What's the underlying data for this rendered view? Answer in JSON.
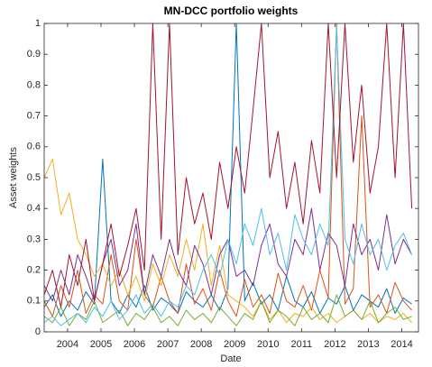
{
  "chart_data": {
    "type": "line",
    "title": "MN-DCC portfolio weights",
    "x_label": "Date",
    "y_label": "Asset weights",
    "x": [
      2003.3,
      2003.55,
      2003.8,
      2004.05,
      2004.3,
      2004.55,
      2004.8,
      2005.05,
      2005.3,
      2005.55,
      2005.8,
      2006.05,
      2006.3,
      2006.55,
      2006.8,
      2007.05,
      2007.3,
      2007.55,
      2007.8,
      2008.05,
      2008.3,
      2008.55,
      2008.8,
      2009.05,
      2009.3,
      2009.55,
      2009.8,
      2010.05,
      2010.3,
      2010.55,
      2010.8,
      2011.05,
      2011.3,
      2011.55,
      2011.8,
      2012.05,
      2012.3,
      2012.55,
      2012.8,
      2013.05,
      2013.3,
      2013.55,
      2013.8,
      2014.05,
      2014.3
    ],
    "series": [
      {
        "color": "#0072BD",
        "values": [
          0.08,
          0.12,
          0.05,
          0.1,
          0.07,
          0.13,
          0.09,
          0.56,
          0.1,
          0.06,
          0.12,
          0.08,
          0.15,
          0.07,
          0.11,
          0.09,
          0.06,
          0.13,
          0.1,
          0.08,
          0.12,
          0.07,
          0.14,
          1,
          0.1,
          0.16,
          0.09,
          0.12,
          0.07,
          0.18,
          0.1,
          0.08,
          0.13,
          0.06,
          0.11,
          0.09,
          0.15,
          0.07,
          0.12,
          0.1,
          0.08,
          0.14,
          0.06,
          0.11,
          0.09
        ]
      },
      {
        "color": "#D95319",
        "values": [
          0.1,
          0.05,
          0.15,
          0.08,
          0.2,
          0.06,
          0.12,
          0.09,
          0.25,
          0.1,
          0.07,
          0.3,
          0.12,
          0.08,
          0.18,
          0.1,
          0.06,
          0.22,
          0.09,
          0.14,
          0.07,
          0.2,
          0.1,
          0.05,
          0.17,
          0.08,
          0.12,
          0.06,
          0.19,
          0.1,
          0.08,
          0.15,
          0.07,
          0.2,
          0.11,
          1,
          0.09,
          0.14,
          0.7,
          0.08,
          0.12,
          0.06,
          0.16,
          0.1,
          0.07
        ]
      },
      {
        "color": "#EDB120",
        "values": [
          0.5,
          0.56,
          0.38,
          0.45,
          0.3,
          0.25,
          0.18,
          0.22,
          0.15,
          0.2,
          0.12,
          0.18,
          0.1,
          0.22,
          0.15,
          0.25,
          0.18,
          0.3,
          0.2,
          0.35,
          0.15,
          0.28,
          0.12,
          0.1,
          0.08,
          0.05,
          0.1,
          0.04,
          0.07,
          0.03,
          0.06,
          0.05,
          0.08,
          0.04,
          0.06,
          0.03,
          0.05,
          0.07,
          0.04,
          0.06,
          0.03,
          0.05,
          0.04,
          0.06,
          0.03
        ]
      },
      {
        "color": "#7E2F8E",
        "values": [
          0.15,
          0.1,
          0.2,
          0.12,
          0.25,
          0.18,
          0.1,
          0.22,
          0.3,
          0.15,
          0.2,
          0.35,
          0.12,
          0.25,
          0.18,
          0.3,
          0.2,
          0.15,
          0.28,
          0.22,
          0.12,
          0.25,
          0.3,
          0.18,
          0.2,
          0.15,
          0.28,
          0.35,
          0.22,
          0.18,
          0.3,
          0.25,
          0.4,
          0.2,
          0.32,
          0.28,
          0.15,
          0.35,
          0.25,
          0.3,
          0.2,
          0.38,
          0.22,
          0.3,
          0.25
        ]
      },
      {
        "color": "#77AC30",
        "values": [
          0.05,
          0.03,
          0.08,
          0.02,
          0.06,
          0.04,
          0.1,
          0.03,
          0.05,
          0.07,
          0.02,
          0.06,
          0.04,
          0.08,
          0.03,
          0.05,
          0.02,
          0.07,
          0.04,
          0.06,
          0.03,
          0.08,
          0.05,
          0.02,
          0.06,
          0.04,
          0.1,
          0.03,
          0.07,
          0.05,
          0.02,
          0.08,
          0.04,
          0.06,
          0.03,
          0.12,
          0.05,
          0.07,
          0.04,
          0.1,
          0.03,
          0.06,
          0.08,
          0.04,
          0.05
        ]
      },
      {
        "color": "#4DBEEE",
        "values": [
          0.03,
          0.05,
          0.02,
          0.04,
          0.06,
          0.03,
          0.08,
          0.05,
          0.1,
          0.04,
          0.07,
          0.12,
          0.06,
          0.09,
          0.05,
          0.1,
          0.08,
          0.15,
          0.12,
          0.2,
          0.25,
          0.18,
          0.3,
          0.22,
          0.35,
          0.28,
          0.4,
          0.25,
          0.32,
          0.2,
          0.38,
          0.3,
          0.25,
          0.35,
          0.28,
          0.99,
          0.3,
          0.22,
          0.35,
          0.25,
          0.3,
          0.2,
          0.28,
          0.32,
          0.25
        ]
      },
      {
        "color": "#A2142F",
        "values": [
          0.12,
          0.2,
          0.08,
          0.25,
          0.15,
          0.3,
          0.1,
          0.22,
          0.35,
          0.18,
          0.28,
          0.4,
          0.2,
          1,
          0.3,
          1,
          0.25,
          0.5,
          0.35,
          0.45,
          0.3,
          0.55,
          0.4,
          0.6,
          0.45,
          0.72,
          1,
          0.5,
          0.65,
          0.4,
          0.55,
          0.35,
          0.62,
          0.45,
          1,
          0.5,
          1,
          0.55,
          0.8,
          0.45,
          0.6,
          1,
          0.5,
          1,
          0.4
        ]
      }
    ],
    "xlim": [
      2003.3,
      2014.5
    ],
    "xticks": [
      2004,
      2005,
      2006,
      2007,
      2008,
      2009,
      2010,
      2011,
      2012,
      2013,
      2014
    ],
    "ylim": [
      0,
      1
    ],
    "yticks": [
      0,
      0.1,
      0.2,
      0.3,
      0.4,
      0.5,
      0.6,
      0.7,
      0.8,
      0.9,
      1
    ],
    "grid": false
  }
}
